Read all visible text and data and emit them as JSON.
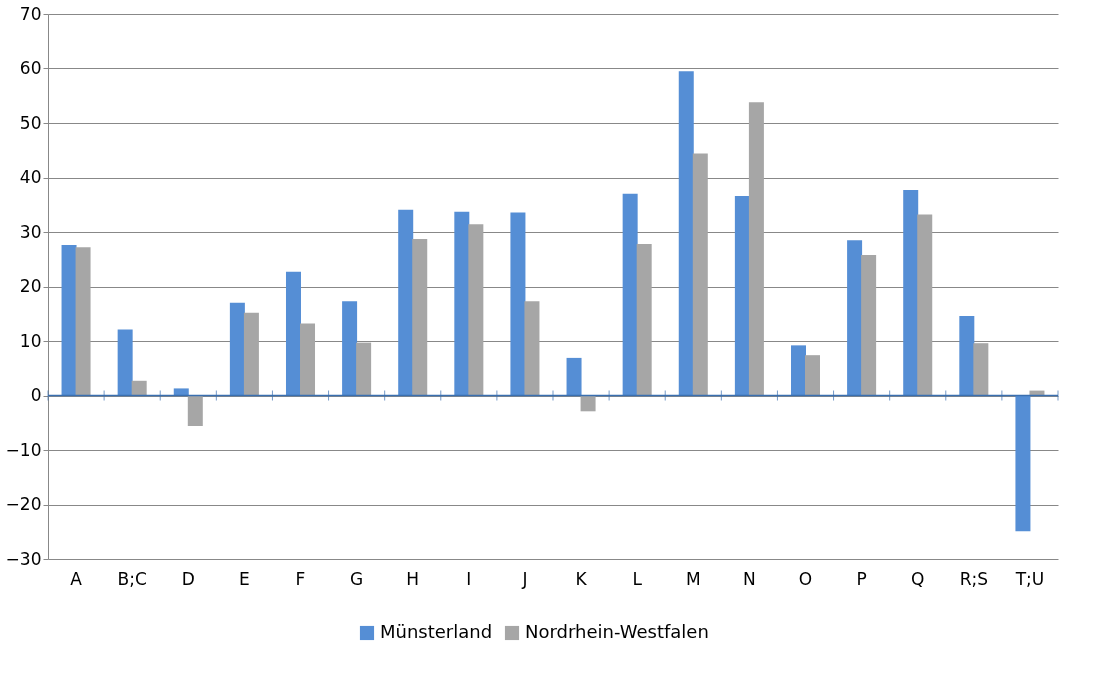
{
  "chart_data": {
    "type": "bar",
    "categories": [
      "A",
      "B;C",
      "D",
      "E",
      "F",
      "G",
      "H",
      "I",
      "J",
      "K",
      "L",
      "M",
      "N",
      "O",
      "P",
      "Q",
      "R;S",
      "T;U"
    ],
    "series": [
      {
        "name": "Münsterland",
        "color": "#558ed5",
        "values": [
          27.6,
          12.1,
          1.3,
          17.0,
          22.7,
          17.3,
          34.1,
          33.7,
          33.6,
          6.9,
          37.0,
          59.5,
          36.6,
          9.2,
          28.5,
          37.7,
          14.6,
          -24.9
        ]
      },
      {
        "name": "Nordrhein-Westfalen",
        "color": "#a6a6a6",
        "values": [
          27.2,
          2.7,
          -5.6,
          15.2,
          13.2,
          9.7,
          28.7,
          31.4,
          17.3,
          -2.9,
          27.8,
          44.4,
          53.8,
          7.4,
          25.8,
          33.2,
          9.6,
          0.9
        ]
      }
    ],
    "ylim": [
      -30,
      70
    ],
    "yticks": [
      -30,
      -20,
      -10,
      0,
      10,
      20,
      30,
      40,
      50,
      60,
      70
    ],
    "grid": "y",
    "legend": "bottom",
    "ref_lines": [
      {
        "axis": "y",
        "value": 0,
        "color": "#3a6fb0"
      }
    ]
  }
}
